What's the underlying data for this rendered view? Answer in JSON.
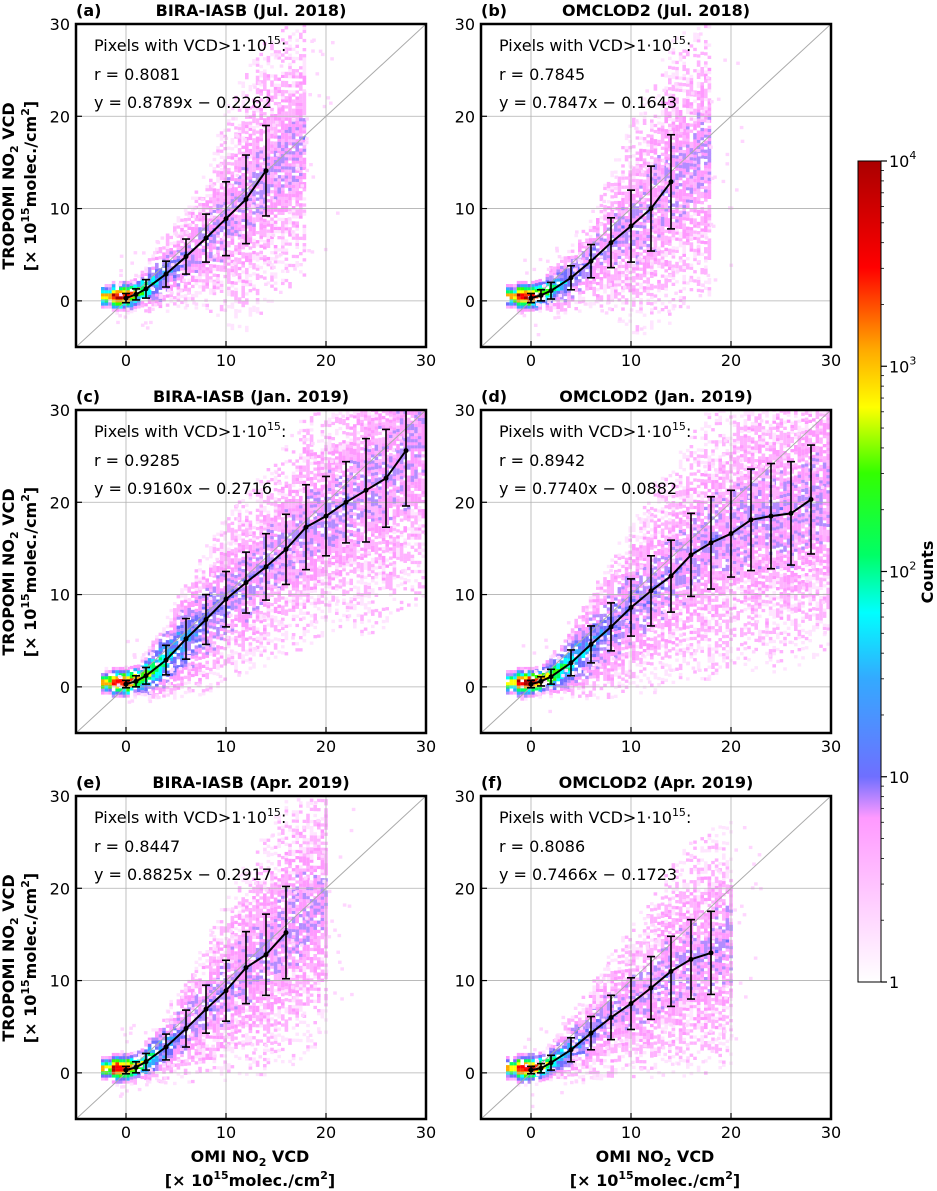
{
  "chart_data": [
    {
      "type": "heatmap",
      "panel_label": "(a)",
      "title": "BIRA-IASB (Jul. 2018)",
      "annotation_header": "Pixels with VCD>1·10",
      "annotation_header_exp": "15",
      "annotation_header_end": ":",
      "r_text": "r = 0.8081",
      "fit_text": "y = 0.8789x − 0.2262",
      "slope": 0.8789,
      "intercept": -0.2262,
      "xlim": [
        -5,
        30
      ],
      "ylim": [
        -5,
        30
      ],
      "xticks": [
        0,
        10,
        20,
        30
      ],
      "yticks": [
        0,
        10,
        20,
        30
      ],
      "xticklabels": [
        "0",
        "10",
        "20",
        "30"
      ],
      "yticklabels": [
        "0",
        "10",
        "20",
        "30"
      ],
      "grid": true,
      "binned_mean": {
        "x": [
          0,
          1,
          2,
          4,
          6,
          8,
          10,
          12,
          14
        ],
        "y": [
          0.3,
          0.7,
          1.3,
          2.9,
          4.8,
          6.8,
          8.9,
          11.0,
          14.1
        ],
        "err": [
          0.5,
          0.6,
          1.0,
          1.4,
          1.9,
          2.6,
          4.0,
          4.8,
          4.9
        ]
      },
      "spread_max": 18
    },
    {
      "type": "heatmap",
      "panel_label": "(b)",
      "title": "OMCLOD2 (Jul. 2018)",
      "annotation_header": "Pixels with VCD>1·10",
      "annotation_header_exp": "15",
      "annotation_header_end": ":",
      "r_text": "r = 0.7845",
      "fit_text": "y = 0.7847x − 0.1643",
      "slope": 0.7847,
      "intercept": -0.1643,
      "xlim": [
        -5,
        30
      ],
      "ylim": [
        -5,
        30
      ],
      "xticks": [
        0,
        10,
        20,
        30
      ],
      "yticks": [
        0,
        10,
        20,
        30
      ],
      "xticklabels": [
        "0",
        "10",
        "20",
        "30"
      ],
      "yticklabels": [
        "0",
        "10",
        "20",
        "30"
      ],
      "grid": true,
      "binned_mean": {
        "x": [
          0,
          1,
          2,
          4,
          6,
          8,
          10,
          12,
          14
        ],
        "y": [
          0.3,
          0.6,
          1.1,
          2.5,
          4.3,
          6.3,
          8.1,
          10.0,
          12.9
        ],
        "err": [
          0.5,
          0.6,
          0.9,
          1.3,
          1.8,
          2.7,
          3.9,
          4.6,
          5.1
        ]
      },
      "spread_max": 18
    },
    {
      "type": "heatmap",
      "panel_label": "(c)",
      "title": "BIRA-IASB (Jan. 2019)",
      "annotation_header": "Pixels with VCD>1·10",
      "annotation_header_exp": "15",
      "annotation_header_end": ":",
      "r_text": "r = 0.9285",
      "fit_text": "y = 0.9160x − 0.2716",
      "slope": 0.916,
      "intercept": -0.2716,
      "xlim": [
        -5,
        30
      ],
      "ylim": [
        -5,
        30
      ],
      "xticks": [
        0,
        10,
        20,
        30
      ],
      "yticks": [
        0,
        10,
        20,
        30
      ],
      "xticklabels": [
        "0",
        "10",
        "20",
        "30"
      ],
      "yticklabels": [
        "0",
        "10",
        "20",
        "30"
      ],
      "grid": true,
      "binned_mean": {
        "x": [
          0,
          1,
          2,
          4,
          6,
          8,
          10,
          12,
          14,
          16,
          18,
          20,
          22,
          24,
          26,
          28
        ],
        "y": [
          0.3,
          0.6,
          1.2,
          2.9,
          5.2,
          7.3,
          9.5,
          11.3,
          13.0,
          14.9,
          17.3,
          18.5,
          20.0,
          21.3,
          22.6,
          25.6
        ],
        "err": [
          0.4,
          0.6,
          0.9,
          1.6,
          2.2,
          2.7,
          3.0,
          3.3,
          3.6,
          3.8,
          4.6,
          4.3,
          4.4,
          5.6,
          5.3,
          6.0
        ]
      },
      "spread_max": 30
    },
    {
      "type": "heatmap",
      "panel_label": "(d)",
      "title": "OMCLOD2 (Jan. 2019)",
      "annotation_header": "Pixels with VCD>1·10",
      "annotation_header_exp": "15",
      "annotation_header_end": ":",
      "r_text": "r = 0.8942",
      "fit_text": "y = 0.7740x − 0.0882",
      "slope": 0.774,
      "intercept": -0.0882,
      "xlim": [
        -5,
        30
      ],
      "ylim": [
        -5,
        30
      ],
      "xticks": [
        0,
        10,
        20,
        30
      ],
      "yticks": [
        0,
        10,
        20,
        30
      ],
      "xticklabels": [
        "0",
        "10",
        "20",
        "30"
      ],
      "yticklabels": [
        "0",
        "10",
        "20",
        "30"
      ],
      "grid": true,
      "binned_mean": {
        "x": [
          0,
          1,
          2,
          4,
          6,
          8,
          10,
          12,
          14,
          16,
          18,
          20,
          22,
          24,
          26,
          28
        ],
        "y": [
          0.3,
          0.6,
          1.1,
          2.6,
          4.6,
          6.5,
          8.6,
          10.4,
          12.0,
          14.3,
          15.6,
          16.6,
          18.1,
          18.5,
          18.8,
          20.3
        ],
        "err": [
          0.4,
          0.5,
          0.8,
          1.4,
          2.0,
          2.6,
          3.1,
          3.8,
          3.9,
          4.5,
          5.0,
          4.7,
          5.5,
          5.7,
          5.6,
          5.9
        ]
      },
      "spread_max": 30
    },
    {
      "type": "heatmap",
      "panel_label": "(e)",
      "title": "BIRA-IASB (Apr. 2019)",
      "annotation_header": "Pixels with VCD>1·10",
      "annotation_header_exp": "15",
      "annotation_header_end": ":",
      "r_text": "r = 0.8447",
      "fit_text": "y = 0.8825x − 0.2917",
      "slope": 0.8825,
      "intercept": -0.2917,
      "xlim": [
        -5,
        30
      ],
      "ylim": [
        -5,
        30
      ],
      "xticks": [
        0,
        10,
        20,
        30
      ],
      "yticks": [
        0,
        10,
        20,
        30
      ],
      "xticklabels": [
        "0",
        "10",
        "20",
        "30"
      ],
      "yticklabels": [
        "0",
        "10",
        "20",
        "30"
      ],
      "grid": true,
      "binned_mean": {
        "x": [
          0,
          1,
          2,
          4,
          6,
          8,
          10,
          12,
          14,
          16
        ],
        "y": [
          0.3,
          0.6,
          1.2,
          2.8,
          4.8,
          6.9,
          8.9,
          11.4,
          12.8,
          15.2
        ],
        "err": [
          0.4,
          0.6,
          0.9,
          1.4,
          2.0,
          2.6,
          3.3,
          3.9,
          4.4,
          5.0
        ]
      },
      "spread_max": 20
    },
    {
      "type": "heatmap",
      "panel_label": "(f)",
      "title": "OMCLOD2 (Apr. 2019)",
      "annotation_header": "Pixels with VCD>1·10",
      "annotation_header_exp": "15",
      "annotation_header_end": ":",
      "r_text": "r = 0.8086",
      "fit_text": "y = 0.7466x − 0.1723",
      "slope": 0.7466,
      "intercept": -0.1723,
      "xlim": [
        -5,
        30
      ],
      "ylim": [
        -5,
        30
      ],
      "xticks": [
        0,
        10,
        20,
        30
      ],
      "yticks": [
        0,
        10,
        20,
        30
      ],
      "xticklabels": [
        "0",
        "10",
        "20",
        "30"
      ],
      "yticklabels": [
        "0",
        "10",
        "20",
        "30"
      ],
      "grid": true,
      "binned_mean": {
        "x": [
          0,
          1,
          2,
          4,
          6,
          8,
          10,
          12,
          14,
          16,
          18
        ],
        "y": [
          0.3,
          0.5,
          1.1,
          2.5,
          4.3,
          6.0,
          7.5,
          9.2,
          11.0,
          12.3,
          13.0
        ],
        "err": [
          0.4,
          0.5,
          0.8,
          1.3,
          1.8,
          2.4,
          2.8,
          3.4,
          3.8,
          4.3,
          4.5
        ]
      },
      "spread_max": 20
    }
  ],
  "axes": {
    "ylabel_line1_a": "TROPOMI NO",
    "ylabel_line1_sub": "2",
    "ylabel_line1_b": " VCD",
    "ylabel_line2_a": "[× 10",
    "ylabel_line2_sup": "15",
    "ylabel_line2_b": "molec./cm",
    "ylabel_line2_sup2": "2",
    "ylabel_line2_c": "]",
    "xlabel_line1_a": "OMI NO",
    "xlabel_line1_sub": "2",
    "xlabel_line1_b": " VCD",
    "xlabel_line2_a": "[× 10",
    "xlabel_line2_sup": "15",
    "xlabel_line2_b": "molec./cm",
    "xlabel_line2_sup2": "2",
    "xlabel_line2_c": "]"
  },
  "colorbar": {
    "label": "Counts",
    "scale": "log",
    "range": [
      1,
      10000
    ],
    "ticks": [
      {
        "value": 10000,
        "base": "10",
        "exp": "4"
      },
      {
        "value": 1000,
        "base": "10",
        "exp": "3"
      },
      {
        "value": 100,
        "base": "10",
        "exp": "2"
      },
      {
        "value": 10,
        "base": "10",
        "exp": ""
      },
      {
        "value": 1,
        "base": "1",
        "exp": ""
      }
    ],
    "colors": [
      "#ffffff",
      "#ffb3ff",
      "#6f6fff",
      "#33ccff",
      "#00ffff",
      "#00ff33",
      "#ffff00",
      "#ff9900",
      "#ff0000",
      "#aa0000"
    ]
  }
}
